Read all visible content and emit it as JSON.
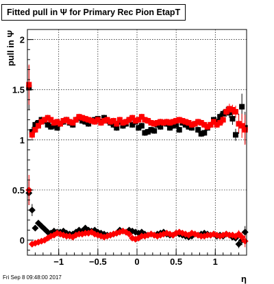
{
  "chart_data": {
    "type": "scatter",
    "title": "Fitted pull in Ψ  for Primary Rec Pion EtapT",
    "xlabel": "η",
    "ylabel": "pull in  Ψ",
    "xlim": [
      -1.4,
      1.4
    ],
    "ylim": [
      -0.15,
      2.1
    ],
    "grid": true,
    "x_ticks": [
      -1,
      -0.5,
      0,
      0.5,
      1
    ],
    "x_tick_labels": [
      "−1",
      "−0.5",
      "0",
      "0.5",
      "1"
    ],
    "y_ticks": [
      0,
      0.5,
      1,
      1.5,
      2
    ],
    "y_tick_labels": [
      "0",
      "0.5",
      "1",
      "1.5",
      "2"
    ],
    "series": [
      {
        "marker": "square",
        "color": "#000000",
        "x": [
          -1.38,
          -1.34,
          -1.3,
          -1.26,
          -1.22,
          -1.18,
          -1.14,
          -1.1,
          -1.06,
          -1.02,
          -0.98,
          -0.94,
          -0.9,
          -0.86,
          -0.82,
          -0.78,
          -0.74,
          -0.7,
          -0.66,
          -0.62,
          -0.58,
          -0.54,
          -0.5,
          -0.46,
          -0.42,
          -0.38,
          -0.34,
          -0.3,
          -0.26,
          -0.22,
          -0.18,
          -0.14,
          -0.1,
          -0.06,
          -0.02,
          0.02,
          0.06,
          0.1,
          0.14,
          0.18,
          0.22,
          0.26,
          0.3,
          0.34,
          0.38,
          0.42,
          0.46,
          0.5,
          0.54,
          0.58,
          0.62,
          0.66,
          0.7,
          0.74,
          0.78,
          0.82,
          0.86,
          0.9,
          0.94,
          0.98,
          1.02,
          1.06,
          1.1,
          1.14,
          1.18,
          1.22,
          1.26,
          1.3,
          1.34,
          1.38
        ],
        "y": [
          1.52,
          1.08,
          1.15,
          1.17,
          1.2,
          1.19,
          1.15,
          1.13,
          1.14,
          1.12,
          1.16,
          1.18,
          1.2,
          1.17,
          1.15,
          1.2,
          1.22,
          1.19,
          1.18,
          1.16,
          1.19,
          1.2,
          1.21,
          1.18,
          1.22,
          1.19,
          1.17,
          1.15,
          1.12,
          1.18,
          1.14,
          1.16,
          1.2,
          1.15,
          1.18,
          1.12,
          1.14,
          1.07,
          1.08,
          1.1,
          1.09,
          1.15,
          1.13,
          1.17,
          1.16,
          1.12,
          1.14,
          1.15,
          1.1,
          1.17,
          1.15,
          1.13,
          1.12,
          1.16,
          1.1,
          1.06,
          1.07,
          1.12,
          1.15,
          1.2,
          1.18,
          1.23,
          1.26,
          1.28,
          1.27,
          1.21,
          1.05,
          1.16,
          1.33,
          1.12
        ],
        "yerr": [
          0.22,
          0.05,
          0.04,
          0.03,
          0.03,
          0.03,
          0.03,
          0.03,
          0.03,
          0.03,
          0.03,
          0.03,
          0.03,
          0.03,
          0.03,
          0.03,
          0.03,
          0.03,
          0.03,
          0.03,
          0.03,
          0.03,
          0.03,
          0.03,
          0.03,
          0.03,
          0.03,
          0.03,
          0.03,
          0.03,
          0.03,
          0.03,
          0.03,
          0.03,
          0.03,
          0.03,
          0.03,
          0.03,
          0.03,
          0.03,
          0.03,
          0.03,
          0.03,
          0.03,
          0.03,
          0.03,
          0.03,
          0.03,
          0.03,
          0.03,
          0.03,
          0.03,
          0.03,
          0.03,
          0.03,
          0.03,
          0.03,
          0.03,
          0.03,
          0.03,
          0.03,
          0.04,
          0.04,
          0.05,
          0.05,
          0.06,
          0.06,
          0.1,
          0.13,
          0.16
        ]
      },
      {
        "marker": "square",
        "color": "#ff0000",
        "x": [
          -1.38,
          -1.34,
          -1.3,
          -1.26,
          -1.22,
          -1.18,
          -1.14,
          -1.1,
          -1.06,
          -1.02,
          -0.98,
          -0.94,
          -0.9,
          -0.86,
          -0.82,
          -0.78,
          -0.74,
          -0.7,
          -0.66,
          -0.62,
          -0.58,
          -0.54,
          -0.5,
          -0.46,
          -0.42,
          -0.38,
          -0.34,
          -0.3,
          -0.26,
          -0.22,
          -0.18,
          -0.14,
          -0.1,
          -0.06,
          -0.02,
          0.02,
          0.06,
          0.1,
          0.14,
          0.18,
          0.22,
          0.26,
          0.3,
          0.34,
          0.38,
          0.42,
          0.46,
          0.5,
          0.54,
          0.58,
          0.62,
          0.66,
          0.7,
          0.74,
          0.78,
          0.82,
          0.86,
          0.9,
          0.94,
          0.98,
          1.02,
          1.06,
          1.1,
          1.14,
          1.18,
          1.22,
          1.26,
          1.3,
          1.34,
          1.38
        ],
        "y": [
          1.55,
          1.05,
          1.1,
          1.14,
          1.18,
          1.2,
          1.22,
          1.2,
          1.17,
          1.18,
          1.16,
          1.19,
          1.2,
          1.18,
          1.17,
          1.2,
          1.23,
          1.22,
          1.21,
          1.2,
          1.19,
          1.18,
          1.2,
          1.17,
          1.19,
          1.2,
          1.18,
          1.19,
          1.16,
          1.2,
          1.17,
          1.18,
          1.2,
          1.22,
          1.19,
          1.2,
          1.23,
          1.2,
          1.19,
          1.17,
          1.16,
          1.17,
          1.18,
          1.17,
          1.18,
          1.17,
          1.18,
          1.19,
          1.2,
          1.19,
          1.18,
          1.17,
          1.15,
          1.16,
          1.18,
          1.17,
          1.15,
          1.13,
          1.15,
          1.18,
          1.15,
          1.17,
          1.2,
          1.28,
          1.31,
          1.3,
          1.28,
          1.16,
          1.14,
          1.1
        ],
        "yerr": [
          0.2,
          0.04,
          0.03,
          0.03,
          0.03,
          0.03,
          0.03,
          0.03,
          0.03,
          0.03,
          0.03,
          0.03,
          0.03,
          0.03,
          0.03,
          0.03,
          0.03,
          0.03,
          0.03,
          0.03,
          0.03,
          0.03,
          0.03,
          0.03,
          0.03,
          0.03,
          0.03,
          0.03,
          0.03,
          0.03,
          0.03,
          0.03,
          0.03,
          0.03,
          0.03,
          0.03,
          0.03,
          0.03,
          0.03,
          0.03,
          0.03,
          0.03,
          0.03,
          0.03,
          0.03,
          0.03,
          0.03,
          0.03,
          0.03,
          0.03,
          0.03,
          0.03,
          0.03,
          0.03,
          0.03,
          0.03,
          0.03,
          0.03,
          0.03,
          0.03,
          0.03,
          0.03,
          0.04,
          0.04,
          0.05,
          0.05,
          0.06,
          0.09,
          0.12,
          0.15
        ]
      },
      {
        "marker": "diamond",
        "color": "#000000",
        "x": [
          -1.38,
          -1.34,
          -1.3,
          -1.26,
          -1.22,
          -1.18,
          -1.14,
          -1.1,
          -1.06,
          -1.02,
          -0.98,
          -0.94,
          -0.9,
          -0.86,
          -0.82,
          -0.78,
          -0.74,
          -0.7,
          -0.66,
          -0.62,
          -0.58,
          -0.54,
          -0.5,
          -0.46,
          -0.42,
          -0.38,
          -0.34,
          -0.3,
          -0.26,
          -0.22,
          -0.18,
          -0.14,
          -0.1,
          -0.06,
          -0.02,
          0.02,
          0.06,
          0.1,
          0.14,
          0.18,
          0.22,
          0.26,
          0.3,
          0.34,
          0.38,
          0.42,
          0.46,
          0.5,
          0.54,
          0.58,
          0.62,
          0.66,
          0.7,
          0.74,
          0.78,
          0.82,
          0.86,
          0.9,
          0.94,
          0.98,
          1.02,
          1.06,
          1.1,
          1.14,
          1.18,
          1.22,
          1.26,
          1.3,
          1.34,
          1.38
        ],
        "y": [
          0.47,
          0.3,
          0.12,
          0.17,
          0.14,
          0.11,
          0.08,
          0.07,
          0.09,
          0.08,
          0.08,
          0.09,
          0.07,
          0.06,
          0.06,
          0.08,
          0.1,
          0.09,
          0.12,
          0.1,
          0.09,
          0.1,
          0.08,
          0.07,
          0.06,
          0.05,
          0.05,
          0.06,
          0.07,
          0.1,
          0.09,
          0.08,
          0.1,
          0.09,
          0.08,
          0.07,
          0.08,
          0.06,
          0.05,
          0.06,
          0.05,
          0.06,
          0.07,
          0.08,
          0.06,
          0.05,
          0.05,
          0.07,
          0.06,
          0.05,
          0.04,
          0.03,
          0.04,
          0.06,
          0.05,
          0.06,
          0.07,
          0.06,
          0.05,
          0.06,
          0.04,
          0.05,
          0.04,
          0.06,
          0.05,
          0.03,
          0.02,
          -0.04,
          0.0,
          0.08
        ],
        "yerr": [
          0.12,
          0.06,
          0.03,
          0.03,
          0.02,
          0.02,
          0.02,
          0.02,
          0.02,
          0.02,
          0.02,
          0.02,
          0.02,
          0.02,
          0.02,
          0.02,
          0.02,
          0.02,
          0.02,
          0.02,
          0.02,
          0.02,
          0.02,
          0.02,
          0.02,
          0.02,
          0.02,
          0.02,
          0.02,
          0.02,
          0.02,
          0.02,
          0.02,
          0.02,
          0.02,
          0.02,
          0.02,
          0.02,
          0.02,
          0.02,
          0.02,
          0.02,
          0.02,
          0.02,
          0.02,
          0.02,
          0.02,
          0.02,
          0.02,
          0.02,
          0.02,
          0.02,
          0.02,
          0.02,
          0.02,
          0.02,
          0.02,
          0.02,
          0.02,
          0.02,
          0.02,
          0.02,
          0.02,
          0.02,
          0.02,
          0.03,
          0.03,
          0.04,
          0.05,
          0.06
        ]
      },
      {
        "marker": "diamond",
        "color": "#ff0000",
        "x": [
          -1.38,
          -1.34,
          -1.3,
          -1.26,
          -1.22,
          -1.18,
          -1.14,
          -1.1,
          -1.06,
          -1.02,
          -0.98,
          -0.94,
          -0.9,
          -0.86,
          -0.82,
          -0.78,
          -0.74,
          -0.7,
          -0.66,
          -0.62,
          -0.58,
          -0.54,
          -0.5,
          -0.46,
          -0.42,
          -0.38,
          -0.34,
          -0.3,
          -0.26,
          -0.22,
          -0.18,
          -0.14,
          -0.1,
          -0.06,
          -0.02,
          0.02,
          0.06,
          0.1,
          0.14,
          0.18,
          0.22,
          0.26,
          0.3,
          0.34,
          0.38,
          0.42,
          0.46,
          0.5,
          0.54,
          0.58,
          0.62,
          0.66,
          0.7,
          0.74,
          0.78,
          0.82,
          0.86,
          0.9,
          0.94,
          0.98,
          1.02,
          1.06,
          1.1,
          1.14,
          1.18,
          1.22,
          1.26,
          1.3,
          1.34,
          1.38
        ],
        "y": [
          0.5,
          -0.04,
          -0.03,
          -0.02,
          -0.01,
          0.0,
          0.02,
          0.04,
          0.05,
          0.07,
          0.06,
          0.05,
          0.04,
          0.04,
          0.03,
          0.05,
          0.06,
          0.06,
          0.07,
          0.07,
          0.08,
          0.06,
          0.05,
          0.04,
          0.03,
          0.04,
          0.05,
          0.06,
          0.07,
          0.08,
          0.09,
          0.08,
          0.06,
          0.02,
          0.01,
          0.02,
          0.04,
          0.04,
          0.05,
          0.06,
          0.05,
          0.04,
          0.05,
          0.06,
          0.07,
          0.06,
          0.05,
          0.07,
          0.08,
          0.07,
          0.06,
          0.05,
          0.07,
          0.06,
          0.05,
          0.04,
          0.04,
          0.05,
          0.05,
          0.06,
          0.05,
          0.04,
          0.05,
          0.06,
          0.05,
          0.05,
          0.04,
          0.06,
          0.03,
          -0.01
        ],
        "yerr": [
          0.15,
          0.03,
          0.02,
          0.02,
          0.02,
          0.02,
          0.02,
          0.02,
          0.02,
          0.02,
          0.02,
          0.02,
          0.02,
          0.02,
          0.02,
          0.02,
          0.02,
          0.02,
          0.02,
          0.02,
          0.02,
          0.02,
          0.02,
          0.02,
          0.02,
          0.02,
          0.02,
          0.02,
          0.02,
          0.02,
          0.02,
          0.02,
          0.02,
          0.02,
          0.02,
          0.02,
          0.02,
          0.02,
          0.02,
          0.02,
          0.02,
          0.02,
          0.02,
          0.02,
          0.02,
          0.02,
          0.02,
          0.02,
          0.02,
          0.02,
          0.02,
          0.02,
          0.02,
          0.02,
          0.02,
          0.02,
          0.02,
          0.02,
          0.02,
          0.02,
          0.02,
          0.02,
          0.02,
          0.02,
          0.02,
          0.02,
          0.03,
          0.04,
          0.05,
          0.06
        ]
      }
    ]
  },
  "footer": {
    "timestamp": "Fri Sep  8 09:48:00 2017"
  }
}
